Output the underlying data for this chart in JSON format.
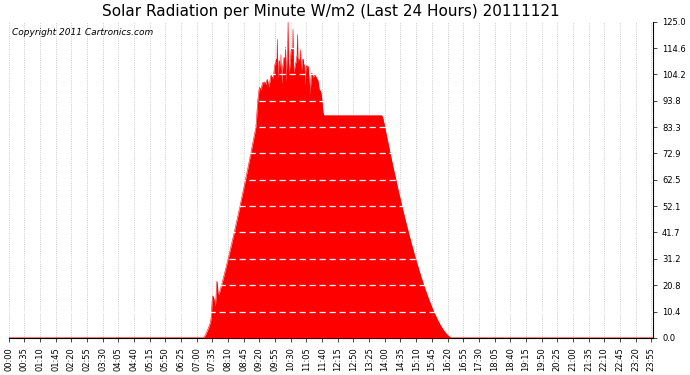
{
  "title": "Solar Radiation per Minute W/m2 (Last 24 Hours) 20111121",
  "copyright": "Copyright 2011 Cartronics.com",
  "background_color": "#ffffff",
  "plot_background": "#ffffff",
  "bar_color": "#ff0000",
  "grid_h_color": "#ffffff",
  "grid_v_color": "#aaaaaa",
  "dashed_line_color": "#ff0000",
  "ylim": [
    0.0,
    125.0
  ],
  "yticks": [
    0.0,
    10.4,
    20.8,
    31.2,
    41.7,
    52.1,
    62.5,
    72.9,
    83.3,
    93.8,
    104.2,
    114.6,
    125.0
  ],
  "total_minutes": 1440,
  "title_fontsize": 11,
  "copyright_fontsize": 6.5,
  "tick_fontsize": 6,
  "sunrise_min": 435,
  "sunset_min": 990,
  "peak_min": 640,
  "peak_val": 122.0,
  "base_peak": 88.0
}
